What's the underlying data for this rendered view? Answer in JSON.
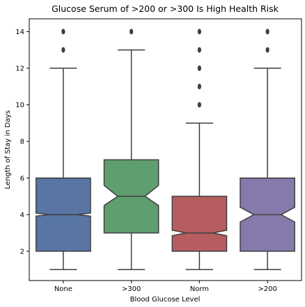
{
  "chart_data": {
    "type": "boxplot",
    "title": "Glucose Serum of >200 or >300 Is High Health Risk",
    "xlabel": "Blood Glucose Level",
    "ylabel": "Length of Stay in Days",
    "ylim": [
      0.4,
      14.7
    ],
    "yticks": [
      2,
      4,
      6,
      8,
      10,
      12,
      14
    ],
    "categories": [
      "None",
      ">300",
      "Norm",
      ">200"
    ],
    "boxes": [
      {
        "category": "None",
        "color": "#5875a4",
        "whisker_low": 1,
        "q1": 2,
        "median": 4,
        "q3": 6,
        "whisker_high": 12,
        "notch_low": 3.92,
        "notch_high": 4.08,
        "outliers": [
          13,
          14
        ]
      },
      {
        "category": ">300",
        "color": "#5f9e6e",
        "whisker_low": 1,
        "q1": 3,
        "median": 5,
        "q3": 7,
        "whisker_high": 13,
        "notch_low": 4.5,
        "notch_high": 5.6,
        "outliers": [
          14
        ]
      },
      {
        "category": "Norm",
        "color": "#b55d60",
        "whisker_low": 1,
        "q1": 2,
        "median": 3,
        "q3": 5,
        "whisker_high": 9,
        "notch_low": 2.85,
        "notch_high": 3.15,
        "outliers": [
          10,
          11,
          12,
          13,
          14
        ]
      },
      {
        "category": ">200",
        "color": "#857aab",
        "whisker_low": 1,
        "q1": 2,
        "median": 4,
        "q3": 6,
        "whisker_high": 12,
        "notch_low": 3.6,
        "notch_high": 4.4,
        "outliers": [
          13,
          14
        ]
      }
    ],
    "line_color": "#3f3f3f",
    "grid": false,
    "legend": "none"
  }
}
